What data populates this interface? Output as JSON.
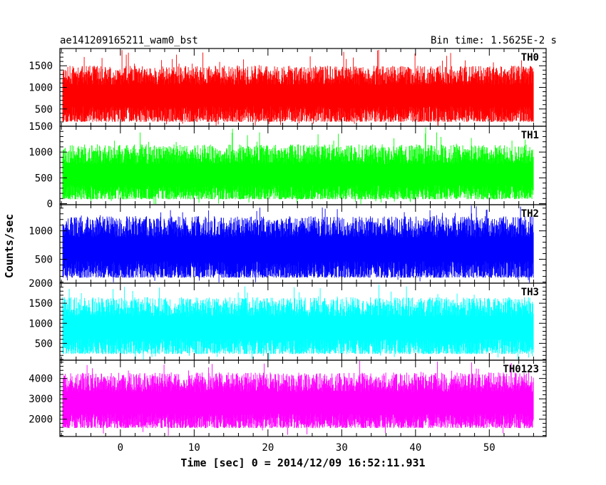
{
  "chart_data": {
    "type": "line",
    "title": "ae141209165211_wam0_bst",
    "bin_time_label": "Bin time: 1.5625E-2 s",
    "xlabel": "Time [sec] 0 = 2014/12/09 16:52:11.931",
    "ylabel": "Counts/sec",
    "xlim": [
      -8.2,
      57.7
    ],
    "data_xrange": [
      -7.8,
      56.0
    ],
    "xticks": [
      0,
      10,
      20,
      30,
      40,
      50
    ],
    "minor_x_step": 2,
    "panels": [
      {
        "name": "TH0",
        "color": "#ff0000",
        "ylim": [
          100,
          1900
        ],
        "yticks": [
          500,
          1000,
          1500
        ],
        "tick_labels_extra": [],
        "minor_y_step": 100,
        "mean": 820,
        "low": 170,
        "high": 1500,
        "spike": 1880,
        "seed": 11
      },
      {
        "name": "TH1",
        "color": "#00ff00",
        "ylim": [
          -20,
          1500
        ],
        "yticks": [
          0,
          500,
          1000,
          1500
        ],
        "tick_labels_extra": [],
        "minor_y_step": 100,
        "mean": 560,
        "low": 60,
        "high": 1150,
        "spike": 1480,
        "seed": 23
      },
      {
        "name": "TH2",
        "color": "#0000ff",
        "ylim": [
          80,
          1460
        ],
        "yticks": [
          500,
          1000
        ],
        "tick_labels_extra": [],
        "minor_y_step": 100,
        "mean": 680,
        "low": 150,
        "high": 1260,
        "spike": 1450,
        "seed": 37
      },
      {
        "name": "TH3",
        "color": "#00ffff",
        "ylim": [
          80,
          2000
        ],
        "yticks": [
          500,
          1000,
          1500,
          2000
        ],
        "tick_labels_extra": [],
        "minor_y_step": 100,
        "mean": 900,
        "low": 200,
        "high": 1650,
        "spike": 1980,
        "seed": 41
      },
      {
        "name": "TH0123",
        "color": "#ff00ff",
        "ylim": [
          1150,
          4900
        ],
        "yticks": [
          2000,
          3000,
          4000
        ],
        "tick_labels_extra": [],
        "minor_y_step": 200,
        "mean": 2800,
        "low": 1500,
        "high": 4300,
        "spike": 4880,
        "seed": 53
      }
    ]
  }
}
